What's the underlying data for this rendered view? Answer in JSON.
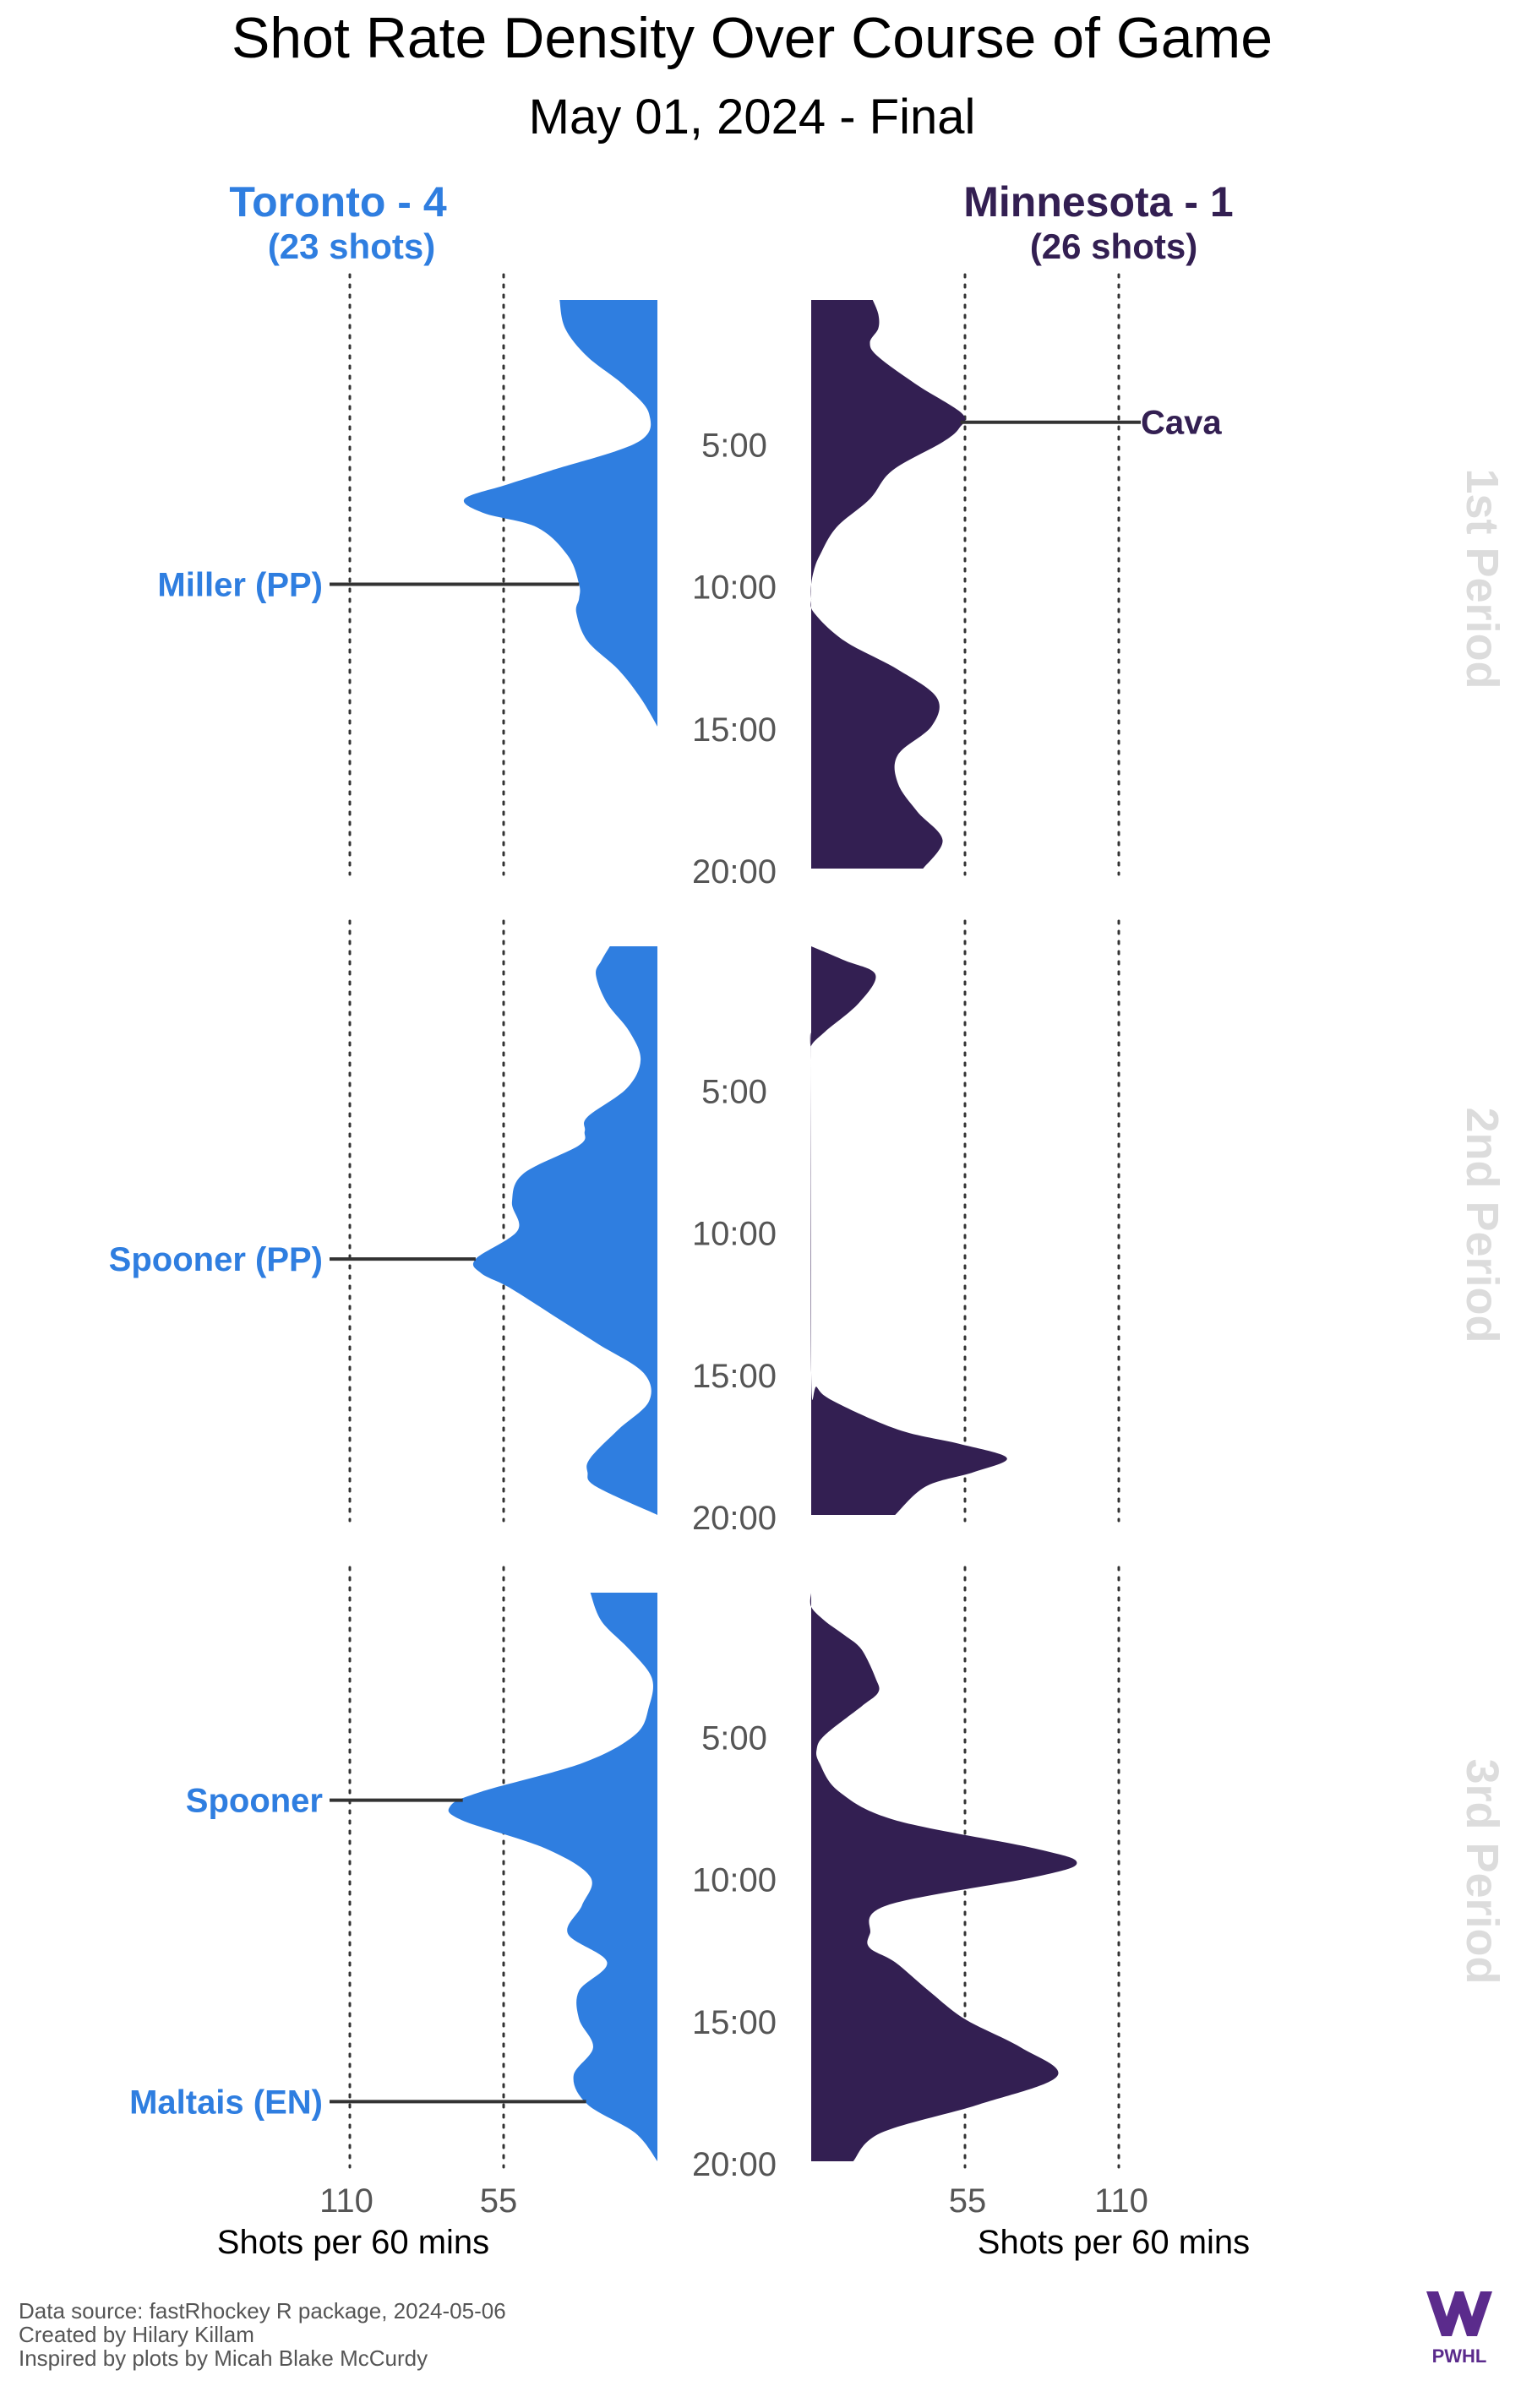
{
  "title": "Shot Rate Density Over Course of Game",
  "subtitle": "May 01, 2024 - Final",
  "teams": {
    "home": {
      "name": "Toronto - 4",
      "shots": "(23 shots)",
      "color": "#2f7ee0"
    },
    "away": {
      "name": "Minnesota - 1",
      "shots": "(26 shots)",
      "color": "#331f52"
    }
  },
  "period_labels": [
    "1st Period",
    "2nd Period",
    "3rd Period"
  ],
  "period_label_color": "#dcdcdc",
  "time_labels": [
    "5:00",
    "10:00",
    "15:00",
    "20:00"
  ],
  "axis": {
    "xlabel": "Shots per 60 mins",
    "ticks_left": [
      "110",
      "55"
    ],
    "ticks_right": [
      "55",
      "110"
    ]
  },
  "footer": {
    "lines": [
      "Data source: fastRhockey R package, 2024-05-06",
      "Created by Hilary Killam",
      "Inspired by plots by Micah Blake McCurdy"
    ],
    "logo_text": "PWHL",
    "logo_color": "#5b2b8c"
  },
  "chart_data": {
    "type": "area",
    "description_units": "x = game minute within period, y = shot rate (shots per 60 mins)",
    "ylim": [
      0,
      110
    ],
    "grid_lines_at": [
      55,
      110
    ],
    "periods": [
      {
        "period": "1st Period",
        "toronto": {
          "x": [
            0,
            1,
            2,
            3,
            4,
            5,
            6,
            6.5,
            7,
            7.5,
            8,
            9,
            10,
            10.5,
            11,
            12,
            13,
            14,
            15
          ],
          "y": [
            35,
            33,
            25,
            12,
            3,
            7,
            38,
            54,
            69,
            62,
            43,
            32,
            28,
            28,
            29,
            25,
            14,
            6,
            0
          ]
        },
        "minnesota": {
          "x": [
            0,
            0.5,
            1,
            1.5,
            2,
            3,
            4,
            4.5,
            5,
            6,
            7,
            8,
            9,
            9.5,
            10,
            10.5,
            11,
            12,
            13,
            14,
            15,
            16,
            17,
            18,
            19,
            20
          ],
          "y": [
            22,
            24,
            24,
            21,
            24,
            38,
            54,
            53,
            47,
            29,
            21,
            9,
            3,
            1,
            0,
            0,
            1,
            12,
            31,
            45,
            43,
            31,
            31,
            38,
            47,
            40
          ]
        },
        "goals": [
          {
            "team": "toronto",
            "label": "Miller (PP)",
            "time": 10
          },
          {
            "team": "minnesota",
            "label": "Cava",
            "time": 4.3
          }
        ]
      },
      {
        "period": "2nd Period",
        "toronto": {
          "x": [
            0,
            0.5,
            1,
            2,
            3,
            4,
            5,
            6,
            6.5,
            7,
            8,
            9,
            10,
            11,
            11.5,
            12,
            13,
            14,
            15,
            16,
            17,
            18,
            18.5,
            19,
            20
          ],
          "y": [
            17,
            20,
            22,
            18,
            10,
            6,
            11,
            25,
            26,
            28,
            48,
            52,
            50,
            65,
            63,
            53,
            37,
            21,
            5,
            3,
            14,
            24,
            25,
            22,
            0
          ]
        },
        "minnesota": {
          "x": [
            0,
            0.5,
            1,
            2,
            3,
            3.5,
            4,
            15,
            15.5,
            16,
            17,
            17.5,
            18,
            18.5,
            19,
            20
          ],
          "y": [
            0,
            12,
            23,
            17,
            5,
            0,
            0,
            0,
            2,
            8,
            31,
            53,
            70,
            58,
            41,
            30
          ]
        },
        "goals": [
          {
            "team": "toronto",
            "label": "Spooner (PP)",
            "time": 11
          }
        ]
      },
      {
        "period": "3rd Period",
        "toronto": {
          "x": [
            0,
            1,
            2,
            3,
            4,
            5,
            6,
            7,
            7.5,
            8,
            9,
            10,
            11,
            12,
            13,
            14,
            15,
            16,
            17,
            18,
            19,
            20
          ],
          "y": [
            24,
            20,
            10,
            2,
            3,
            8,
            27,
            63,
            74,
            70,
            40,
            24,
            27,
            32,
            18,
            28,
            28,
            23,
            30,
            25,
            8,
            0
          ]
        },
        "minnesota": {
          "x": [
            0,
            0.5,
            1,
            1.5,
            2,
            3,
            3.5,
            4,
            5,
            5.5,
            6,
            7,
            8,
            9,
            9.5,
            10,
            11,
            12,
            12.5,
            13,
            14,
            15,
            16,
            17,
            18,
            19,
            20
          ],
          "y": [
            0,
            0,
            5,
            12,
            18,
            23,
            24,
            18,
            5,
            2,
            3,
            10,
            30,
            80,
            95,
            80,
            27,
            21,
            21,
            30,
            42,
            55,
            75,
            88,
            60,
            25,
            15
          ]
        },
        "goals": [
          {
            "team": "toronto",
            "label": "Spooner",
            "time": 7.3
          },
          {
            "team": "toronto",
            "label": "Maltais (EN)",
            "time": 17.9
          }
        ]
      }
    ]
  }
}
